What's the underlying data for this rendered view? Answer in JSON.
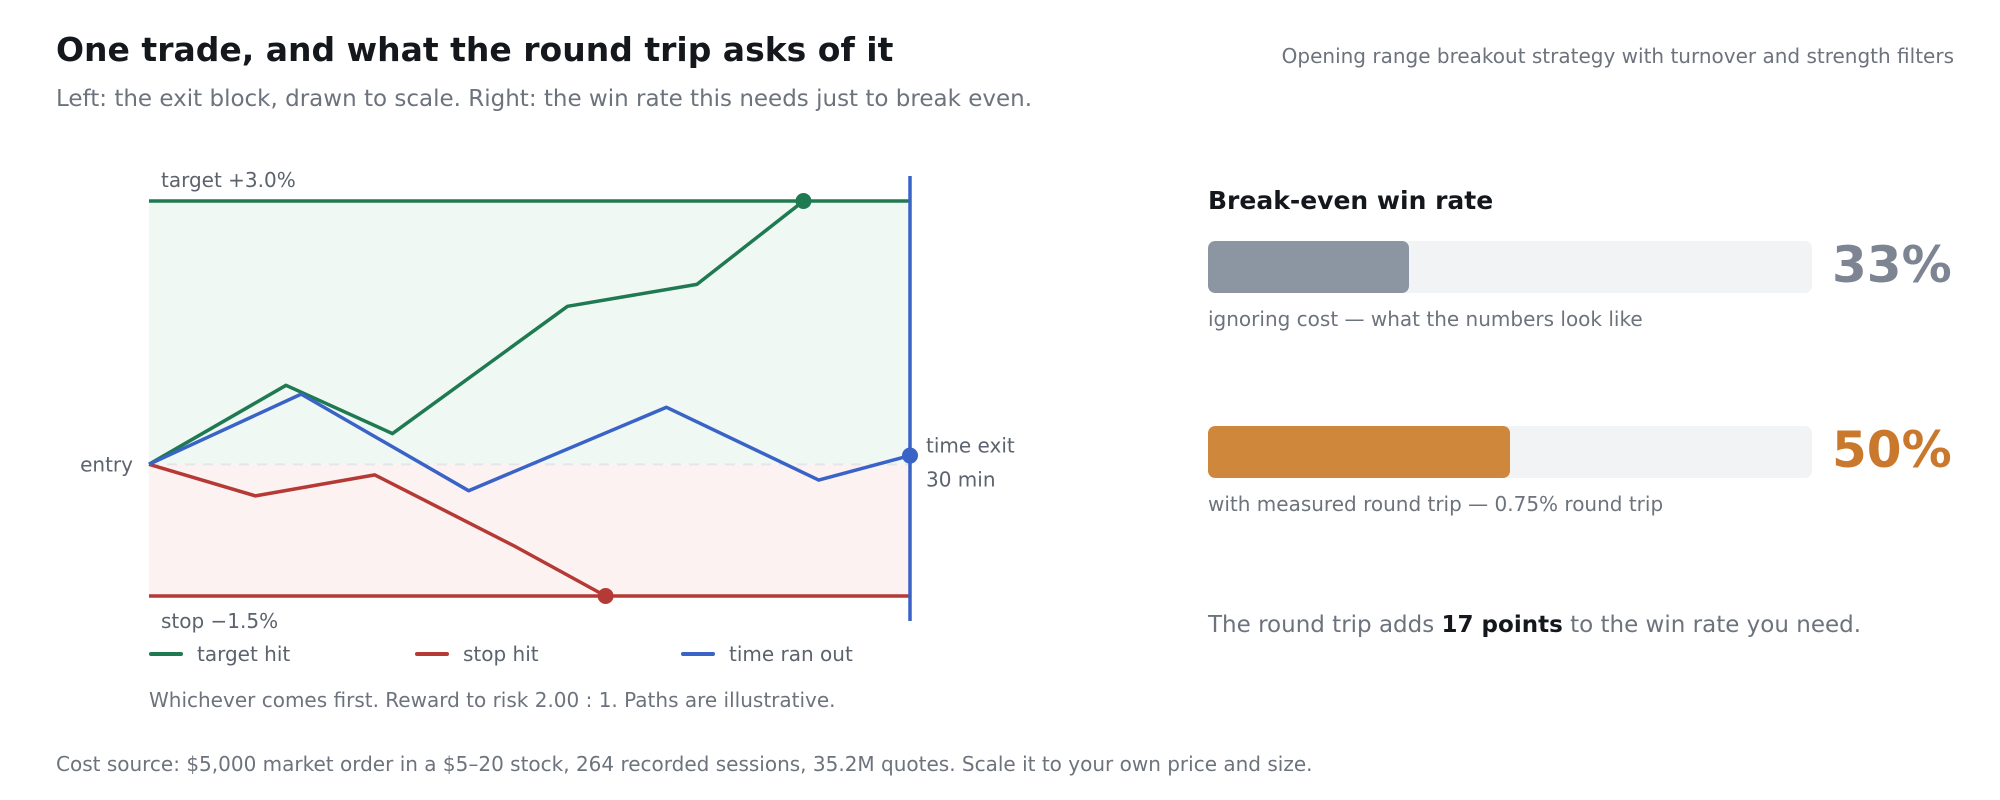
{
  "header": {
    "title": "One trade, and what the round trip asks of it",
    "subtitle": "Left: the exit block, drawn to scale. Right: the win rate this needs just to break even.",
    "context": "Opening range breakout strategy with turnover and strength filters"
  },
  "chart_data": {
    "type": "line",
    "title": "",
    "xlabel": "",
    "ylabel": "",
    "xlim": [
      0,
      30
    ],
    "ylim": [
      -1.5,
      3.0
    ],
    "grid": false,
    "levels": {
      "target": {
        "label": "target +3.0%",
        "value": 3.0
      },
      "stop": {
        "label": "stop −1.5%",
        "value": -1.5
      },
      "entry": {
        "label": "entry",
        "value": 0
      },
      "time_exit": {
        "label_line1": "time exit",
        "label_line2": "30 min",
        "x": 30
      }
    },
    "series": [
      {
        "name": "target hit",
        "color": "#1f7a52",
        "x": [
          0,
          5.4,
          9.6,
          16.5,
          21.6,
          25.8
        ],
        "y": [
          0,
          0.9,
          0.35,
          1.8,
          2.05,
          3.0
        ]
      },
      {
        "name": "stop hit",
        "color": "#b53a35",
        "x": [
          0,
          4.2,
          8.9,
          14.4,
          18.0
        ],
        "y": [
          0,
          -0.36,
          -0.12,
          -0.93,
          -1.5
        ]
      },
      {
        "name": "time ran out",
        "color": "#3a63c7",
        "x": [
          0,
          6.0,
          12.6,
          20.4,
          26.4,
          30
        ],
        "y": [
          0,
          0.8,
          -0.3,
          0.65,
          -0.18,
          0.1
        ]
      }
    ],
    "legend_position": "bottom",
    "caption": "Whichever comes first. Reward to risk 2.00 : 1. Paths are illustrative."
  },
  "breakeven": {
    "title": "Break-even win rate",
    "track_color": "#f2f3f5",
    "bars": [
      {
        "value": 33.3,
        "label": "33%",
        "note": "ignoring cost — what the numbers look like",
        "color": "#8c96a3",
        "text_color": "#7d8593"
      },
      {
        "value": 50,
        "label": "50%",
        "note": "with measured round trip — 0.75% round trip",
        "color": "#cf873c",
        "text_color": "#c9782c"
      }
    ],
    "summary_before": "The round trip adds ",
    "summary_bold": "17 points",
    "summary_after": " to the win rate you need."
  },
  "footer": {
    "cost_source": "Cost source: $5,000 market order in a $5–20 stock, 264 recorded sessions, 35.2M quotes. Scale it to your own price and size."
  }
}
